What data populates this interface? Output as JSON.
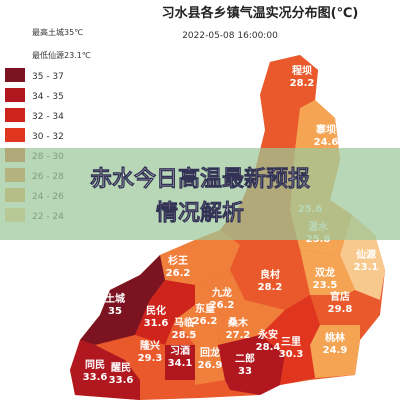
{
  "header": {
    "title": "习水县各乡镇气温实况分布图(℃)",
    "timestamp": "2022-05-08 16:00:00",
    "max_note": "最高土城35℃",
    "min_note": "最低仙源23.1℃"
  },
  "legend": [
    {
      "label": "35 - 37",
      "color": "#7b1420"
    },
    {
      "label": "34 - 35",
      "color": "#b0171f"
    },
    {
      "label": "32 - 34",
      "color": "#cf241c"
    },
    {
      "label": "30 - 32",
      "color": "#e0361f"
    },
    {
      "label": "28 - 30",
      "color": "#e9592b"
    },
    {
      "label": "26 - 28",
      "color": "#f07f3b"
    },
    {
      "label": "24 - 26",
      "color": "#f4a452"
    },
    {
      "label": "22 - 24",
      "color": "#f8c98c"
    }
  ],
  "banner": {
    "line1": "赤水今日高温最新预报",
    "line2": "情况解析"
  },
  "towns": [
    {
      "name": "程坝",
      "temp": "28.2"
    },
    {
      "name": "寨坝",
      "temp": "24.6"
    },
    {
      "temp": "25.6"
    },
    {
      "name": "温水",
      "temp": "25.8"
    },
    {
      "name": "仙源",
      "temp": "23.1"
    },
    {
      "name": "杉王",
      "temp": "26.2"
    },
    {
      "name": "良村",
      "temp": "28.2"
    },
    {
      "name": "双龙",
      "temp": "23.5"
    },
    {
      "name": "九龙",
      "temp": "26.2"
    },
    {
      "name": "土城",
      "temp": "35"
    },
    {
      "name": "民化",
      "temp": "31.6"
    },
    {
      "name": "东皇",
      "temp": "26.2"
    },
    {
      "name": "官店",
      "temp": "29.8"
    },
    {
      "name": "马临",
      "temp": "28.5"
    },
    {
      "name": "桑木",
      "temp": "27.2"
    },
    {
      "name": "永安",
      "temp": "28.4"
    },
    {
      "name": "三里",
      "temp": "30.3"
    },
    {
      "name": "桃林",
      "temp": "24.9"
    },
    {
      "name": "隆兴",
      "temp": "29.3"
    },
    {
      "name": "习酒",
      "temp": "34.1"
    },
    {
      "name": "回龙",
      "temp": "26.9"
    },
    {
      "name": "二郎",
      "temp": "33"
    },
    {
      "name": "同民",
      "temp": "33.6"
    },
    {
      "name": "醒民",
      "temp": "33.6"
    }
  ]
}
